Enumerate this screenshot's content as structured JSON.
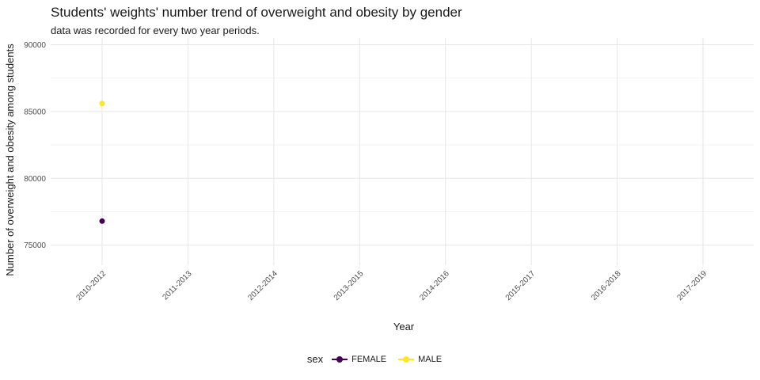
{
  "chart_data": {
    "type": "line",
    "title": "Students' weights' number trend of overweight and obesity by gender",
    "subtitle": "data was recorded for every two year periods.",
    "xlabel": "Year",
    "ylabel": "Number of overweight and obesity among students",
    "categories": [
      "2010-2012",
      "2011-2013",
      "2012-2014",
      "2013-2015",
      "2014-2016",
      "2015-2017",
      "2016-2018",
      "2017-2019"
    ],
    "ylim": [
      73500,
      90500
    ],
    "yticks": [
      75000,
      80000,
      85000,
      90000
    ],
    "ytick_labels": [
      "75000",
      "80000",
      "85000",
      "90000"
    ],
    "grid": true,
    "legend": {
      "title": "sex",
      "position": "bottom"
    },
    "series": [
      {
        "name": "FEMALE",
        "color": "#440154",
        "values": [
          76800,
          null,
          null,
          null,
          null,
          null,
          null,
          null
        ]
      },
      {
        "name": "MALE",
        "color": "#FDE725",
        "values": [
          85600,
          null,
          null,
          null,
          null,
          null,
          null,
          null
        ]
      }
    ]
  }
}
